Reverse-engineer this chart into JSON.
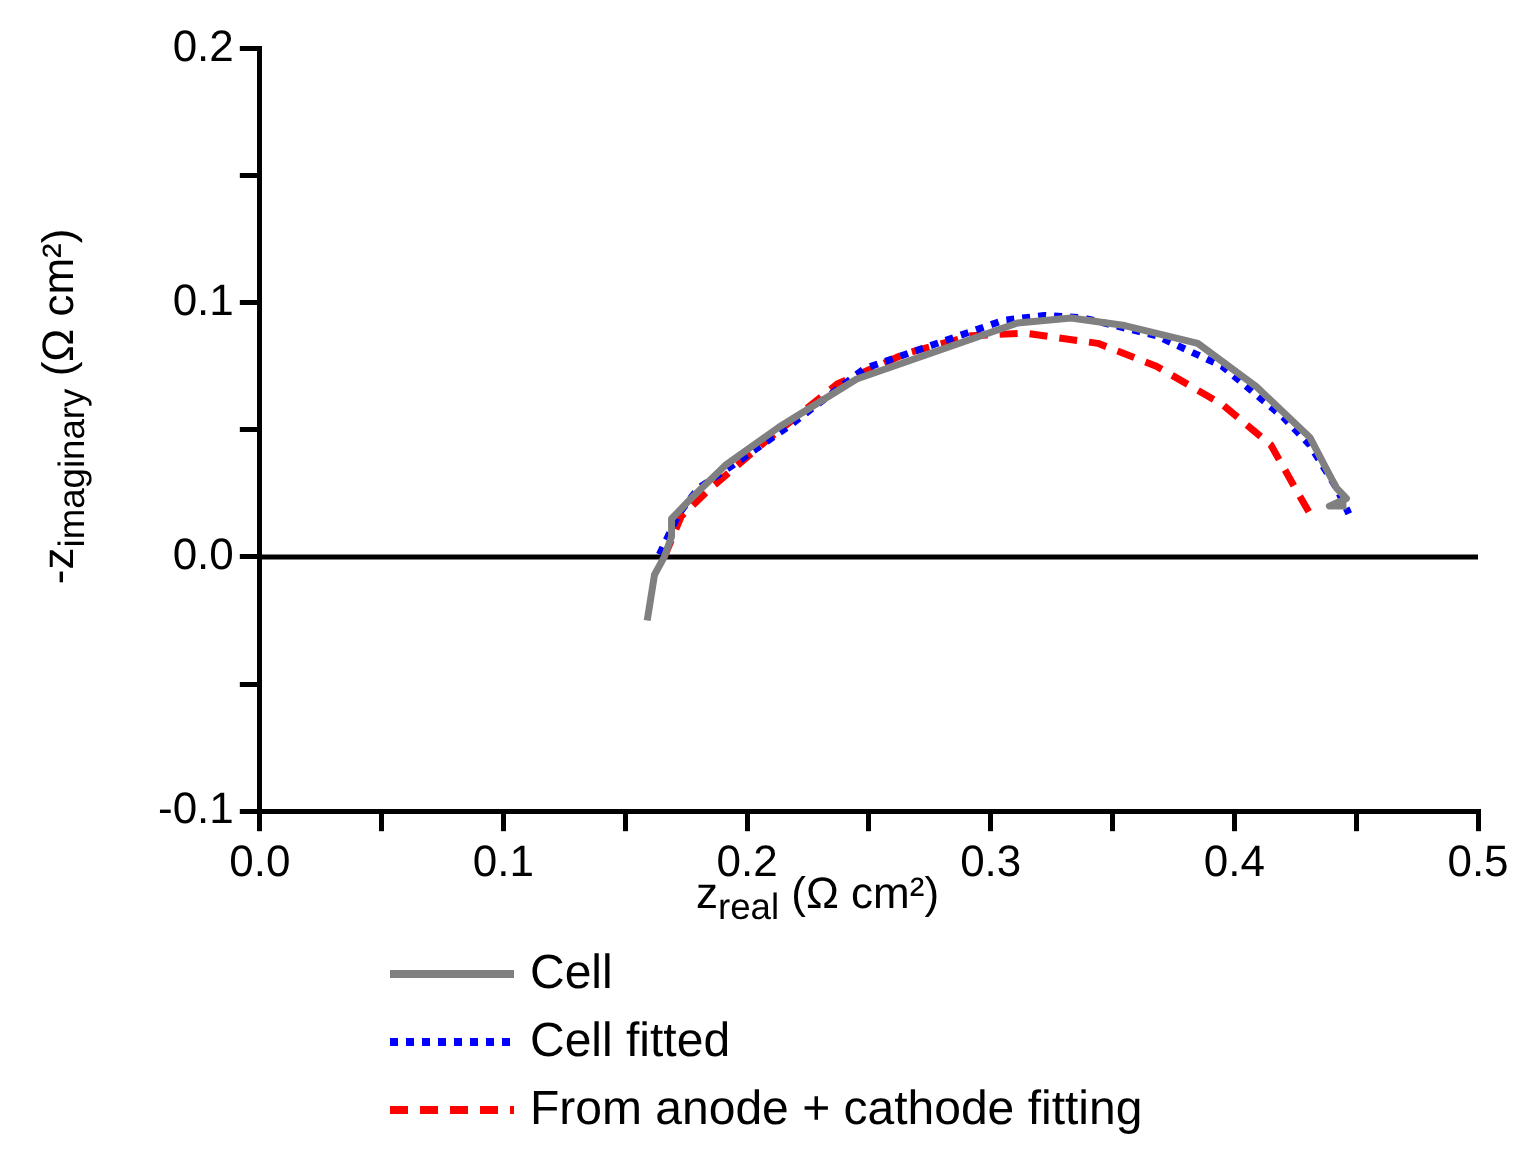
{
  "chart_data": {
    "type": "line",
    "xlabel": "z$_{real}$ (Ω cm²)",
    "ylabel": "-z$_{imaginary}$ (Ω cm²)",
    "xlim": [
      0,
      0.5
    ],
    "xticks": [
      {
        "value": 0,
        "label": "0.0"
      },
      {
        "value": 0.05,
        "label": null
      },
      0.1,
      {
        "value": 0.15,
        "label": null
      },
      0.2,
      {
        "value": 0.25,
        "label": null
      },
      0.3,
      {
        "value": 0.35,
        "label": null
      },
      0.4,
      {
        "value": 0.45,
        "label": null
      },
      0.5
    ],
    "ylim": [
      -0.1,
      0.2
    ],
    "yticks": [
      -0.1,
      {
        "value": -0.05,
        "label": null
      },
      {
        "value": 0,
        "label": "0.0"
      },
      {
        "value": 0.05,
        "label": null
      },
      0.1,
      {
        "value": 0.15,
        "label": null
      },
      0.2
    ],
    "grid": false,
    "legend": "bottom",
    "ref_lines": [
      {
        "axis": "y",
        "value": 0,
        "color": "#000000"
      }
    ],
    "series": [
      {
        "name": "Cell",
        "color": "#808080",
        "line_style": "solid",
        "x": [
          0.159,
          0.162,
          0.166,
          0.169,
          0.169,
          0.177,
          0.191,
          0.213,
          0.245,
          0.281,
          0.311,
          0.333,
          0.355,
          0.385,
          0.409,
          0.431,
          0.437,
          0.442,
          0.446,
          0.439,
          0.446
        ],
        "values": [
          -0.025,
          -0.007,
          0.0,
          0.008,
          0.015,
          0.023,
          0.036,
          0.051,
          0.07,
          0.082,
          0.092,
          0.094,
          0.091,
          0.084,
          0.067,
          0.047,
          0.036,
          0.027,
          0.023,
          0.02,
          0.02
        ]
      },
      {
        "name": "Cell fitted",
        "color": "#0000ff",
        "line_style": "dotted",
        "x": [
          0.164,
          0.172,
          0.18,
          0.194,
          0.218,
          0.248,
          0.275,
          0.305,
          0.322,
          0.338,
          0.368,
          0.395,
          0.42,
          0.431,
          0.442,
          0.447
        ],
        "values": [
          0.001,
          0.017,
          0.027,
          0.036,
          0.052,
          0.074,
          0.083,
          0.093,
          0.095,
          0.094,
          0.087,
          0.075,
          0.055,
          0.044,
          0.027,
          0.017
        ]
      },
      {
        "name": "From anode + cathode fitting",
        "color": "#ff0000",
        "line_style": "dashed",
        "x": [
          0.166,
          0.173,
          0.185,
          0.207,
          0.237,
          0.265,
          0.292,
          0.314,
          0.344,
          0.368,
          0.395,
          0.415,
          0.425,
          0.431
        ],
        "values": [
          0.0,
          0.016,
          0.027,
          0.045,
          0.068,
          0.08,
          0.087,
          0.088,
          0.084,
          0.075,
          0.06,
          0.044,
          0.027,
          0.017
        ]
      }
    ]
  }
}
